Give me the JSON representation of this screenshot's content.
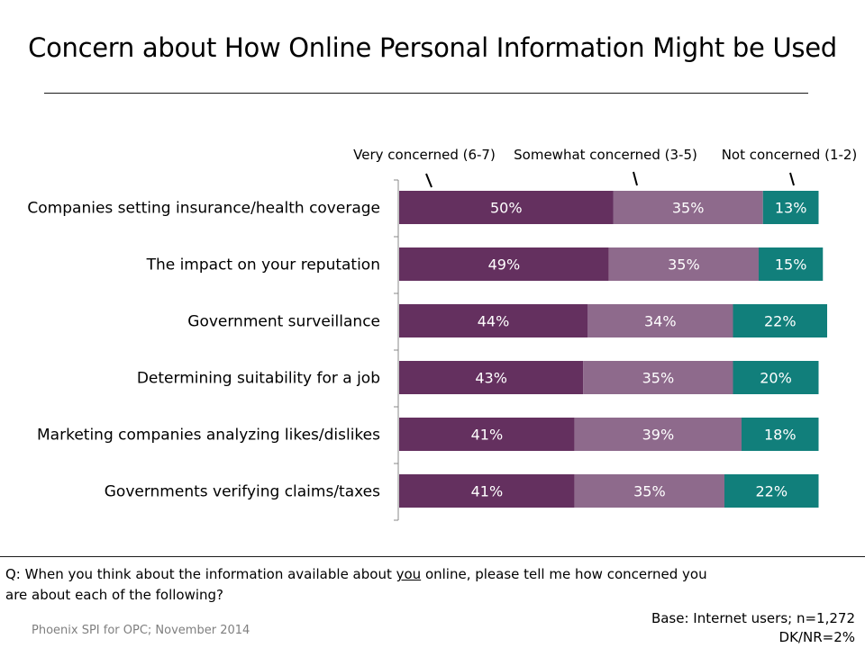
{
  "title": "Concern about How Online Personal Information Might be Used",
  "chart_data": {
    "type": "bar",
    "orientation": "horizontal",
    "stacked": true,
    "categories": [
      "Companies setting insurance/health coverage",
      "The impact on your reputation",
      "Government surveillance",
      "Determining suitability for a job",
      "Marketing companies analyzing likes/dislikes",
      "Governments verifying claims/taxes"
    ],
    "series": [
      {
        "name": "Very concerned (6-7)",
        "color": "#64305f",
        "values": [
          50,
          49,
          44,
          43,
          41,
          41
        ]
      },
      {
        "name": "Somewhat concerned (3-5)",
        "color": "#8e6a8c",
        "values": [
          35,
          35,
          34,
          35,
          39,
          35
        ]
      },
      {
        "name": "Not concerned (1-2)",
        "color": "#117f7b",
        "values": [
          13,
          15,
          22,
          20,
          18,
          22
        ]
      }
    ],
    "value_suffix": "%",
    "xlim": [
      0,
      100
    ],
    "legend": "top, labels with leader marks"
  },
  "question": {
    "prefix": "Q: When you think about the information available about ",
    "emphasis": "you",
    "suffix": " online, please tell me how concerned you are about each of the following?"
  },
  "source": "Phoenix SPI for OPC; November  2014",
  "base": {
    "line1": "Base: Internet users; n=1,272",
    "line2": "DK/NR=2%"
  }
}
